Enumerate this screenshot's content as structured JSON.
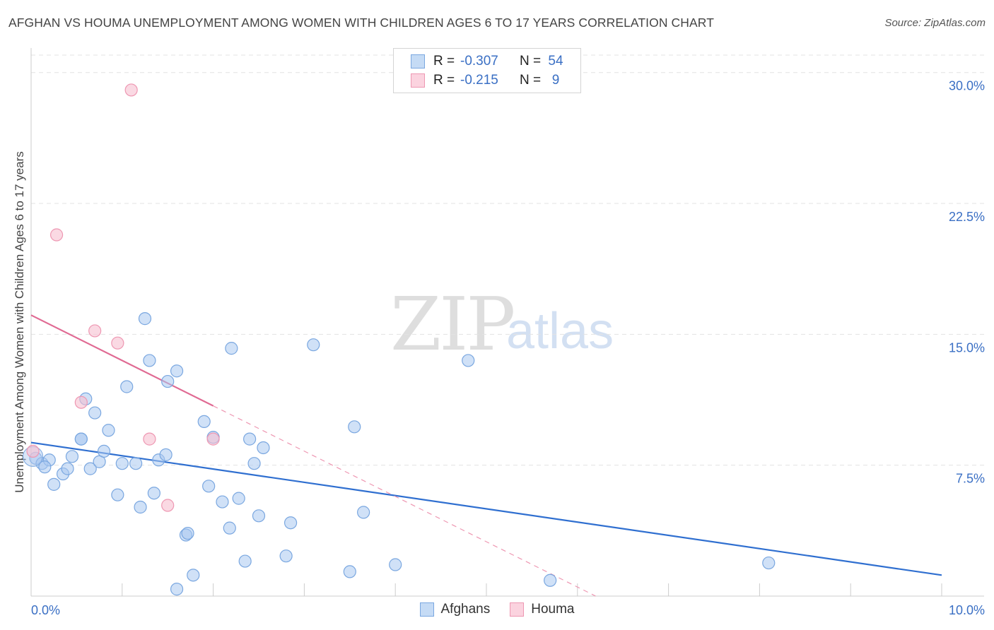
{
  "header": {
    "title": "AFGHAN VS HOUMA UNEMPLOYMENT AMONG WOMEN WITH CHILDREN AGES 6 TO 17 YEARS CORRELATION CHART",
    "source": "Source: ZipAtlas.com"
  },
  "watermark": {
    "zip": "ZIP",
    "atlas": "atlas"
  },
  "legend": {
    "r_label": "R =",
    "n_label": "N =",
    "afghans": {
      "r": "-0.307",
      "n": "54"
    },
    "houma": {
      "r": "-0.215",
      "n": "9"
    }
  },
  "bottom_legend": {
    "afghans": "Afghans",
    "houma": "Houma"
  },
  "colors": {
    "afghans_fill": "#aac8f0",
    "afghans_stroke": "#7aa7e0",
    "afghans_line": "#2f6fd0",
    "houma_fill": "#f7bfd0",
    "houma_stroke": "#ee97b2",
    "houma_line": "#e06a93",
    "tick_label": "#3a6fc4",
    "grid": "#e3e3e3"
  },
  "chart_data": {
    "type": "scatter",
    "title": "AFGHAN VS HOUMA UNEMPLOYMENT AMONG WOMEN WITH CHILDREN AGES 6 TO 17 YEARS CORRELATION CHART",
    "xlabel": "",
    "ylabel": "Unemployment Among Women with Children Ages 6 to 17 years",
    "xlim": [
      0,
      10
    ],
    "ylim": [
      0,
      31
    ],
    "y_ticks": [
      7.5,
      15.0,
      22.5,
      30.0
    ],
    "y_tick_labels": [
      "7.5%",
      "15.0%",
      "22.5%",
      "30.0%"
    ],
    "x_tick_labels": {
      "min": "0.0%",
      "max": "10.0%"
    },
    "grid": true,
    "legend_position": "bottom",
    "series": [
      {
        "name": "Afghans",
        "r": -0.307,
        "n": 54,
        "points": [
          [
            0.05,
            7.9
          ],
          [
            0.12,
            7.6
          ],
          [
            0.2,
            7.8
          ],
          [
            0.15,
            7.4
          ],
          [
            0.25,
            6.4
          ],
          [
            0.35,
            7.0
          ],
          [
            0.4,
            7.3
          ],
          [
            0.45,
            8.0
          ],
          [
            0.55,
            9.0
          ],
          [
            0.6,
            11.3
          ],
          [
            0.65,
            7.3
          ],
          [
            0.7,
            10.5
          ],
          [
            0.75,
            7.7
          ],
          [
            0.8,
            8.3
          ],
          [
            0.85,
            9.5
          ],
          [
            0.95,
            5.8
          ],
          [
            1.0,
            7.6
          ],
          [
            1.05,
            12.0
          ],
          [
            1.15,
            7.6
          ],
          [
            1.2,
            5.1
          ],
          [
            1.25,
            15.9
          ],
          [
            1.3,
            13.5
          ],
          [
            1.35,
            5.9
          ],
          [
            1.4,
            7.8
          ],
          [
            1.48,
            8.1
          ],
          [
            1.5,
            12.3
          ],
          [
            1.6,
            12.9
          ],
          [
            1.7,
            3.5
          ],
          [
            1.72,
            3.6
          ],
          [
            1.78,
            1.2
          ],
          [
            1.6,
            0.4
          ],
          [
            1.9,
            10.0
          ],
          [
            1.95,
            6.3
          ],
          [
            2.0,
            9.1
          ],
          [
            2.1,
            5.4
          ],
          [
            2.18,
            3.9
          ],
          [
            2.2,
            14.2
          ],
          [
            2.28,
            5.6
          ],
          [
            2.35,
            2.0
          ],
          [
            2.4,
            9.0
          ],
          [
            2.45,
            7.6
          ],
          [
            2.5,
            4.6
          ],
          [
            2.55,
            8.5
          ],
          [
            2.8,
            2.3
          ],
          [
            2.85,
            4.2
          ],
          [
            3.1,
            14.4
          ],
          [
            3.5,
            1.4
          ],
          [
            3.55,
            9.7
          ],
          [
            3.65,
            4.8
          ],
          [
            4.0,
            1.8
          ],
          [
            4.8,
            13.5
          ],
          [
            5.7,
            0.9
          ],
          [
            8.1,
            1.9
          ],
          [
            0.55,
            9.0
          ]
        ],
        "trend": {
          "x0": 0.0,
          "y0": 8.8,
          "x1": 10.0,
          "y1": 1.2
        }
      },
      {
        "name": "Houma",
        "r": -0.215,
        "n": 9,
        "points": [
          [
            0.02,
            8.3
          ],
          [
            0.28,
            20.7
          ],
          [
            0.55,
            11.1
          ],
          [
            0.7,
            15.2
          ],
          [
            0.95,
            14.5
          ],
          [
            1.1,
            29.0
          ],
          [
            1.3,
            9.0
          ],
          [
            1.5,
            5.2
          ],
          [
            2.0,
            9.0
          ]
        ],
        "trend": {
          "x0": 0.0,
          "y0": 16.1,
          "x1": 2.0,
          "y1": 10.9
        },
        "trend_extension": {
          "x0": 2.0,
          "y0": 10.9,
          "x1": 6.2,
          "y1": 0.0
        }
      }
    ]
  }
}
